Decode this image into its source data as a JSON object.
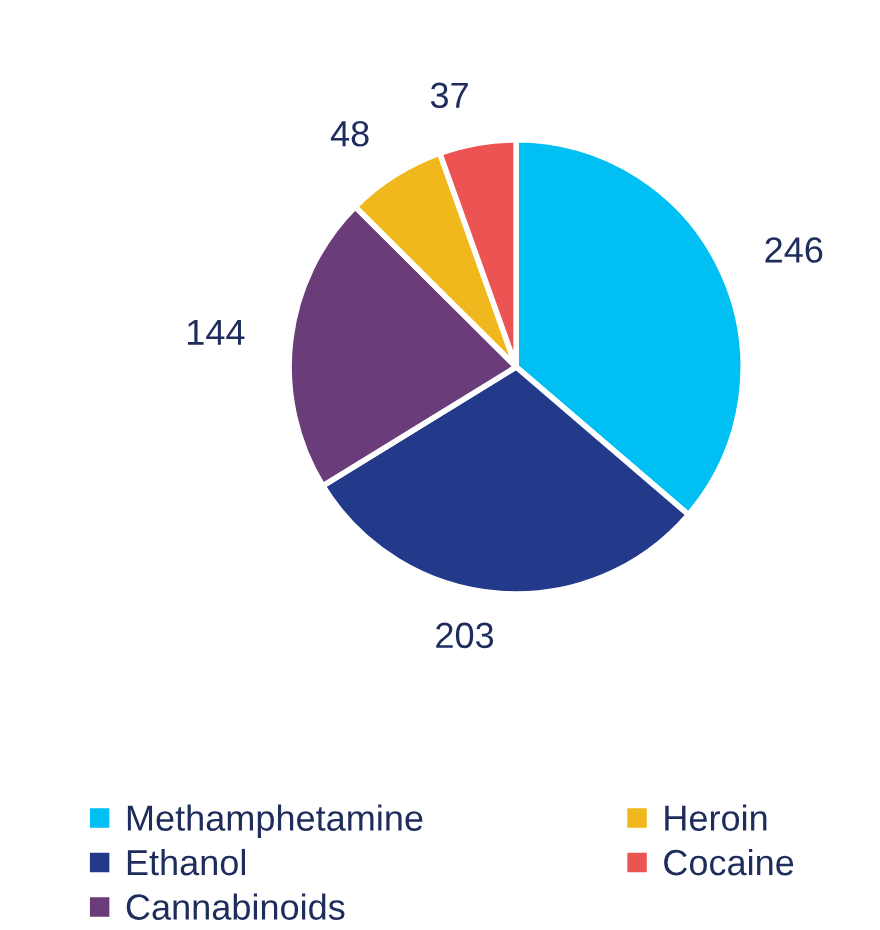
{
  "chart_data": {
    "type": "pie",
    "categories": [
      "Methamphetamine",
      "Ethanol",
      "Cannabinoids",
      "Heroin",
      "Cocaine"
    ],
    "values": [
      246,
      203,
      144,
      48,
      37
    ],
    "colors": [
      "#00bff3",
      "#233a8b",
      "#6a3d7a",
      "#f0b81c",
      "#ec5454"
    ],
    "data_labels": true,
    "legend": "bottom"
  }
}
